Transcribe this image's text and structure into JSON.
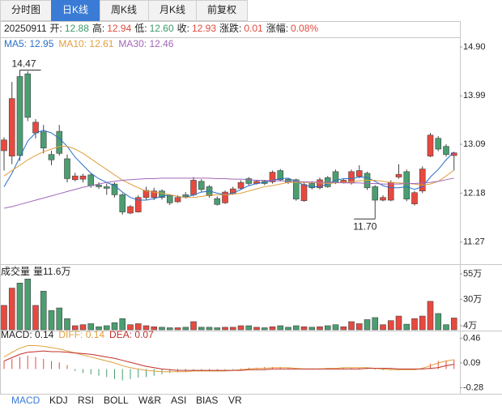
{
  "tabs": [
    "分时图",
    "日K线",
    "周K线",
    "月K线",
    "前复权"
  ],
  "indicator_tabs": [
    "MACD",
    "KDJ",
    "RSI",
    "BOLL",
    "W&R",
    "ASI",
    "BIAS",
    "VR"
  ],
  "chart_data": [
    {
      "type": "candlestick",
      "date": "20250911",
      "info": [
        {
          "label": "开:",
          "value": "12.88",
          "color": "#3d9a6a"
        },
        {
          "label": "高:",
          "value": "12.94",
          "color": "#e04a3f"
        },
        {
          "label": "低:",
          "value": "12.60",
          "color": "#3d9a6a"
        },
        {
          "label": "收:",
          "value": "12.93",
          "color": "#e04a3f"
        },
        {
          "label": "涨跌:",
          "value": "0.01",
          "color": "#e04a3f"
        },
        {
          "label": "涨幅:",
          "value": "0.08%",
          "color": "#e04a3f"
        }
      ],
      "up_color": "#e8493f",
      "down_color": "#4b9e70",
      "ylim": [
        10.95,
        15.05
      ],
      "yticks": [
        {
          "value": 14.9,
          "label": "14.90"
        },
        13.99,
        13.09,
        12.18,
        11.27
      ],
      "annotations": {
        "max": "14.47",
        "min": "11.70"
      },
      "open": [
        12.97,
        12.87,
        14.35,
        14.4,
        13.3,
        13.32,
        12.9,
        13.33,
        12.82,
        12.43,
        12.44,
        12.52,
        12.33,
        12.3,
        12.35,
        12.15,
        11.81,
        11.83,
        12.1,
        12.1,
        12.22,
        12.13,
        12.02,
        12.15,
        12.15,
        12.4,
        12.3,
        12.08,
        12.0,
        12.18,
        12.27,
        12.45,
        12.36,
        12.4,
        12.39,
        12.6,
        12.44,
        12.43,
        12.04,
        12.36,
        12.28,
        12.47,
        12.58,
        12.38,
        12.37,
        12.49,
        12.55,
        12.3,
        12.05,
        12.05,
        12.48,
        12.58,
        11.98,
        12.22,
        12.87,
        13.2,
        13.05,
        12.88
      ],
      "high": [
        13.22,
        14.25,
        14.47,
        14.45,
        13.56,
        13.45,
        12.97,
        13.45,
        12.9,
        12.56,
        12.54,
        12.55,
        12.38,
        12.36,
        12.38,
        12.18,
        11.96,
        12.14,
        12.3,
        12.28,
        12.25,
        12.16,
        12.14,
        12.2,
        12.48,
        12.44,
        12.33,
        12.12,
        12.23,
        12.3,
        12.42,
        12.48,
        12.43,
        12.42,
        12.6,
        12.63,
        12.46,
        12.45,
        12.38,
        12.4,
        12.47,
        12.5,
        12.62,
        12.45,
        12.62,
        12.7,
        12.58,
        12.33,
        12.14,
        12.42,
        12.72,
        12.62,
        12.22,
        12.68,
        13.3,
        13.24,
        13.09,
        12.94
      ],
      "low": [
        12.6,
        12.72,
        12.78,
        13.52,
        13.2,
        12.92,
        12.7,
        12.88,
        12.38,
        12.4,
        12.38,
        12.28,
        12.26,
        12.15,
        12.1,
        11.78,
        11.79,
        11.82,
        12.06,
        12.05,
        12.06,
        11.96,
        12.0,
        12.08,
        12.12,
        12.2,
        12.1,
        11.95,
        11.98,
        12.15,
        12.24,
        12.32,
        12.34,
        12.33,
        12.36,
        12.4,
        12.35,
        12.04,
        12.02,
        12.25,
        12.25,
        12.28,
        12.35,
        12.36,
        12.34,
        12.46,
        12.24,
        11.7,
        12.03,
        12.03,
        12.45,
        12.03,
        11.95,
        12.18,
        12.85,
        12.96,
        12.86,
        12.6
      ],
      "close": [
        13.17,
        13.94,
        12.88,
        13.59,
        13.5,
        13.02,
        12.8,
        12.92,
        12.45,
        12.5,
        12.5,
        12.32,
        12.3,
        12.27,
        12.15,
        11.83,
        11.93,
        12.1,
        12.23,
        12.22,
        12.1,
        12.0,
        12.1,
        12.12,
        12.42,
        12.25,
        12.13,
        11.97,
        12.2,
        12.26,
        12.38,
        12.36,
        12.4,
        12.36,
        12.57,
        12.43,
        12.38,
        12.07,
        12.34,
        12.28,
        12.43,
        12.3,
        12.38,
        12.42,
        12.58,
        12.6,
        12.28,
        12.05,
        12.1,
        12.38,
        12.53,
        12.07,
        12.19,
        12.63,
        13.26,
        13.0,
        12.9,
        12.93
      ],
      "series": [
        {
          "label": "MA5: 12.95",
          "color": "#2a6fc9",
          "values": [
            12.3,
            12.55,
            12.85,
            13.15,
            13.3,
            13.35,
            13.3,
            13.2,
            13.05,
            12.85,
            12.7,
            12.55,
            12.45,
            12.38,
            12.32,
            12.2,
            12.1,
            12.05,
            12.05,
            12.08,
            12.12,
            12.15,
            12.12,
            12.1,
            12.15,
            12.2,
            12.22,
            12.18,
            12.15,
            12.18,
            12.25,
            12.32,
            12.36,
            12.38,
            12.42,
            12.45,
            12.46,
            12.4,
            12.33,
            12.3,
            12.3,
            12.35,
            12.42,
            12.45,
            12.45,
            12.48,
            12.47,
            12.4,
            12.32,
            12.28,
            12.28,
            12.3,
            12.25,
            12.3,
            12.48,
            12.62,
            12.8,
            12.95
          ]
        },
        {
          "label": "MA10: 12.61",
          "color": "#e0a040",
          "values": [
            12.5,
            12.6,
            12.7,
            12.8,
            12.88,
            12.95,
            13.0,
            13.05,
            13.05,
            13.0,
            12.92,
            12.82,
            12.72,
            12.62,
            12.52,
            12.42,
            12.35,
            12.28,
            12.22,
            12.2,
            12.18,
            12.15,
            12.12,
            12.1,
            12.1,
            12.12,
            12.14,
            12.15,
            12.15,
            12.16,
            12.18,
            12.22,
            12.26,
            12.3,
            12.32,
            12.35,
            12.38,
            12.38,
            12.38,
            12.38,
            12.37,
            12.36,
            12.37,
            12.38,
            12.39,
            12.41,
            12.42,
            12.42,
            12.4,
            12.38,
            12.37,
            12.36,
            12.35,
            12.33,
            12.35,
            12.4,
            12.5,
            12.61
          ]
        },
        {
          "label": "MA30: 12.46",
          "color": "#a267b8",
          "values": [
            11.9,
            11.93,
            11.97,
            12.01,
            12.05,
            12.09,
            12.13,
            12.17,
            12.21,
            12.25,
            12.29,
            12.32,
            12.35,
            12.38,
            12.4,
            12.42,
            12.43,
            12.44,
            12.45,
            12.45,
            12.46,
            12.46,
            12.46,
            12.46,
            12.46,
            12.46,
            12.46,
            12.45,
            12.45,
            12.44,
            12.44,
            12.43,
            12.42,
            12.42,
            12.41,
            12.41,
            12.4,
            12.4,
            12.39,
            12.39,
            12.38,
            12.38,
            12.38,
            12.37,
            12.37,
            12.37,
            12.36,
            12.36,
            12.35,
            12.35,
            12.35,
            12.36,
            12.36,
            12.37,
            12.38,
            12.4,
            12.43,
            12.46
          ]
        }
      ]
    },
    {
      "type": "volume",
      "title": "成交量",
      "current_label": "量11.6万",
      "ylim": [
        0,
        59
      ],
      "yticks": [
        {
          "value": 55,
          "label": "55万"
        },
        {
          "value": 30,
          "label": "30万"
        },
        {
          "value": 4,
          "label": "4万"
        }
      ],
      "values": [
        24,
        41,
        46,
        50,
        24,
        38,
        19,
        21.5,
        11,
        4,
        5,
        6,
        3,
        4,
        7,
        11,
        5,
        6,
        4,
        3,
        2.5,
        2,
        2,
        2.5,
        8,
        2.5,
        2.5,
        2,
        2.5,
        2.5,
        4,
        4,
        2.5,
        2,
        3,
        4,
        2.5,
        4,
        3,
        2.5,
        3,
        4,
        5,
        3,
        8,
        6,
        10,
        12,
        5,
        9,
        13.5,
        5.5,
        11,
        13.5,
        28,
        16,
        5,
        11.6
      ]
    },
    {
      "type": "macd",
      "ylim": [
        -0.37,
        0.55
      ],
      "yticks": [
        0.46,
        0.09,
        -0.28
      ],
      "series": [
        {
          "label": "MACD: 0.14",
          "color": "#222222",
          "values": [
            0.12,
            0.15,
            0.18,
            0.2,
            0.18,
            0.15,
            0.12,
            0.1,
            0.06,
            -0.03,
            -0.06,
            -0.08,
            -0.1,
            -0.12,
            -0.15,
            -0.17,
            -0.15,
            -0.13,
            -0.12,
            -0.1,
            -0.08,
            -0.06,
            -0.05,
            -0.04,
            -0.03,
            -0.02,
            -0.02,
            -0.02,
            -0.01,
            -0.01,
            0.01,
            0.02,
            0.02,
            0.03,
            0.03,
            0.03,
            0.02,
            0.01,
            0.0,
            -0.01,
            -0.01,
            0.0,
            0.01,
            0.02,
            0.02,
            0.02,
            0.01,
            -0.01,
            -0.02,
            -0.02,
            -0.01,
            0.0,
            -0.01,
            0.02,
            0.08,
            0.12,
            0.13,
            0.14
          ]
        },
        {
          "label": "DIFF: 0.14",
          "color": "#e0a040",
          "values": [
            0.18,
            0.25,
            0.31,
            0.35,
            0.35,
            0.34,
            0.32,
            0.3,
            0.27,
            0.24,
            0.21,
            0.18,
            0.15,
            0.12,
            0.09,
            0.05,
            0.02,
            0.0,
            -0.02,
            -0.03,
            -0.04,
            -0.04,
            -0.04,
            -0.04,
            -0.03,
            -0.03,
            -0.03,
            -0.03,
            -0.03,
            -0.02,
            -0.01,
            0.0,
            0.01,
            0.01,
            0.02,
            0.02,
            0.02,
            0.01,
            0.0,
            0.0,
            0.0,
            0.01,
            0.01,
            0.02,
            0.02,
            0.02,
            0.02,
            0.01,
            0.0,
            -0.01,
            -0.01,
            -0.01,
            -0.01,
            0.01,
            0.05,
            0.09,
            0.12,
            0.14
          ]
        },
        {
          "label": "DEA: 0.07",
          "color": "#c0302a",
          "values": [
            0.12,
            0.17,
            0.22,
            0.25,
            0.26,
            0.27,
            0.26,
            0.26,
            0.25,
            0.24,
            0.23,
            0.22,
            0.2,
            0.18,
            0.16,
            0.13,
            0.1,
            0.07,
            0.04,
            0.02,
            0.0,
            -0.01,
            -0.02,
            -0.02,
            -0.02,
            -0.02,
            -0.02,
            -0.02,
            -0.02,
            -0.02,
            -0.02,
            -0.01,
            -0.01,
            -0.01,
            0.0,
            0.0,
            0.0,
            0.0,
            0.0,
            0.0,
            0.0,
            0.0,
            0.0,
            0.0,
            0.0,
            0.0,
            0.01,
            0.01,
            0.01,
            0.01,
            0.0,
            0.0,
            0.0,
            0.0,
            0.01,
            0.02,
            0.05,
            0.07
          ]
        }
      ]
    }
  ]
}
